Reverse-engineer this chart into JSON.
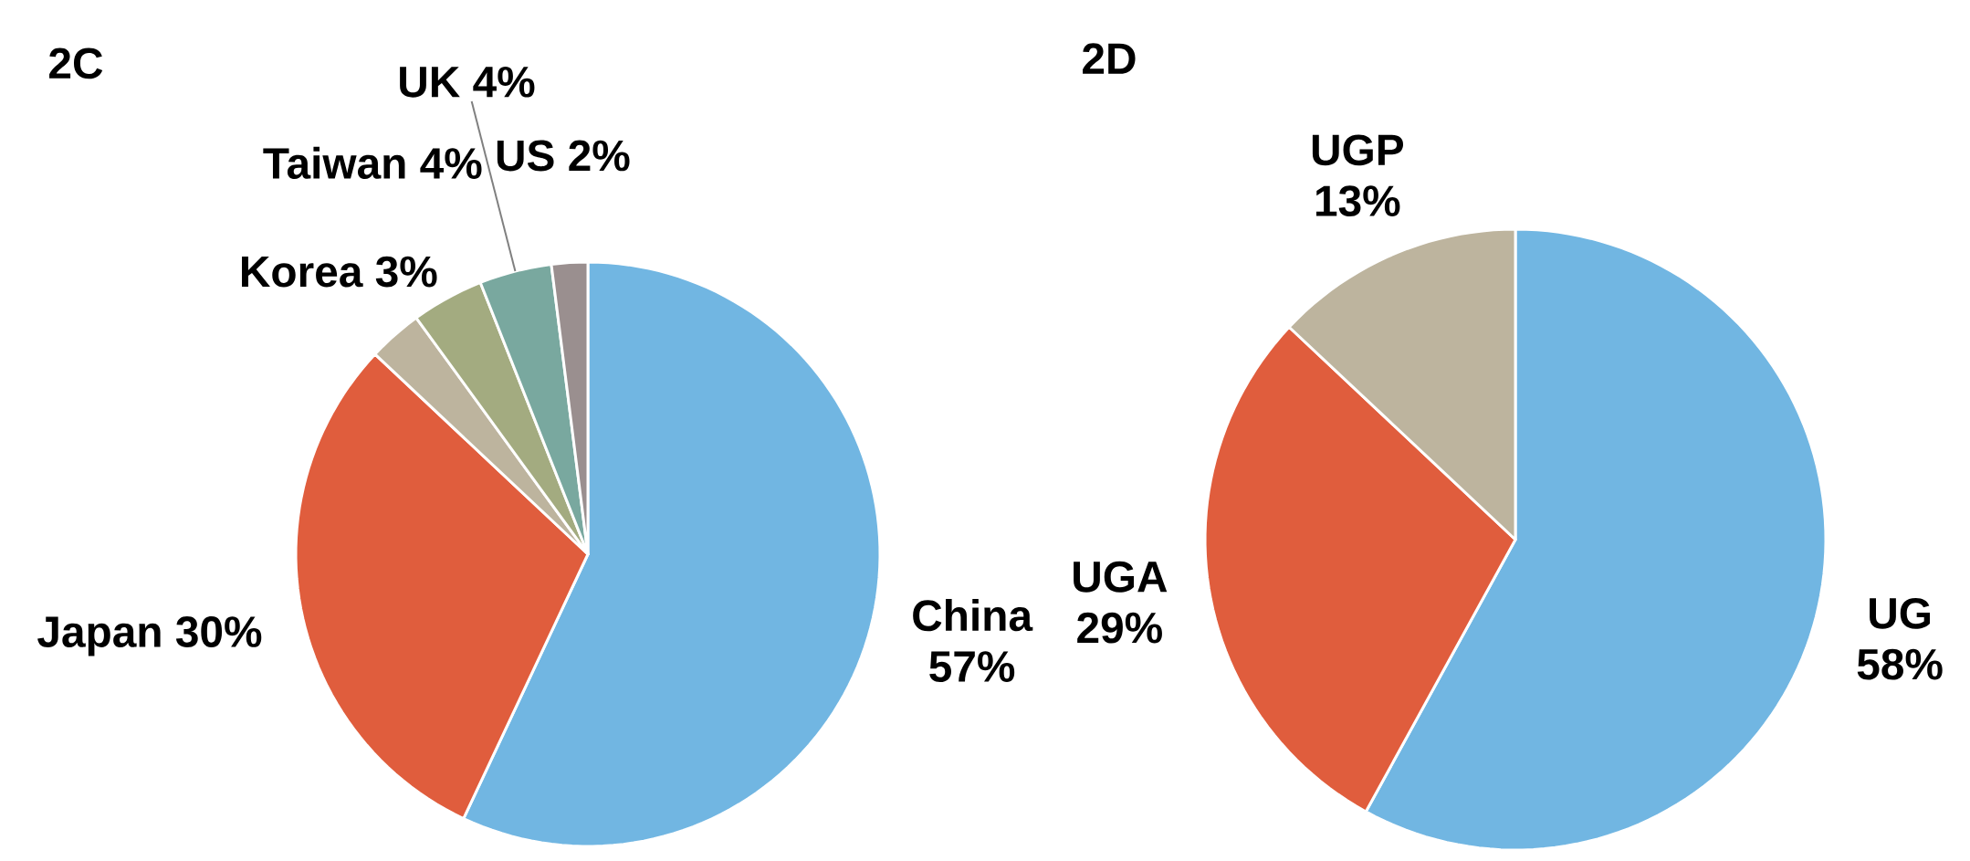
{
  "chart_data": [
    {
      "type": "pie",
      "title": "2C",
      "categories": [
        "China",
        "Japan",
        "Korea",
        "Taiwan",
        "UK",
        "US"
      ],
      "values": [
        57,
        30,
        3,
        4,
        4,
        2
      ],
      "value_labels": [
        "57%",
        "30%",
        "3%",
        "4%",
        "4%",
        "2%"
      ],
      "colors": [
        "#71b6e2",
        "#e05d3d",
        "#bdb49e",
        "#a3ab80",
        "#79a89f",
        "#9a8f8f"
      ]
    },
    {
      "type": "pie",
      "title": "2D",
      "categories": [
        "UG",
        "UGA",
        "UGP"
      ],
      "values": [
        58,
        29,
        13
      ],
      "value_labels": [
        "58%",
        "29%",
        "13%"
      ],
      "colors": [
        "#71b6e2",
        "#e05d3d",
        "#bdb49e"
      ]
    }
  ]
}
